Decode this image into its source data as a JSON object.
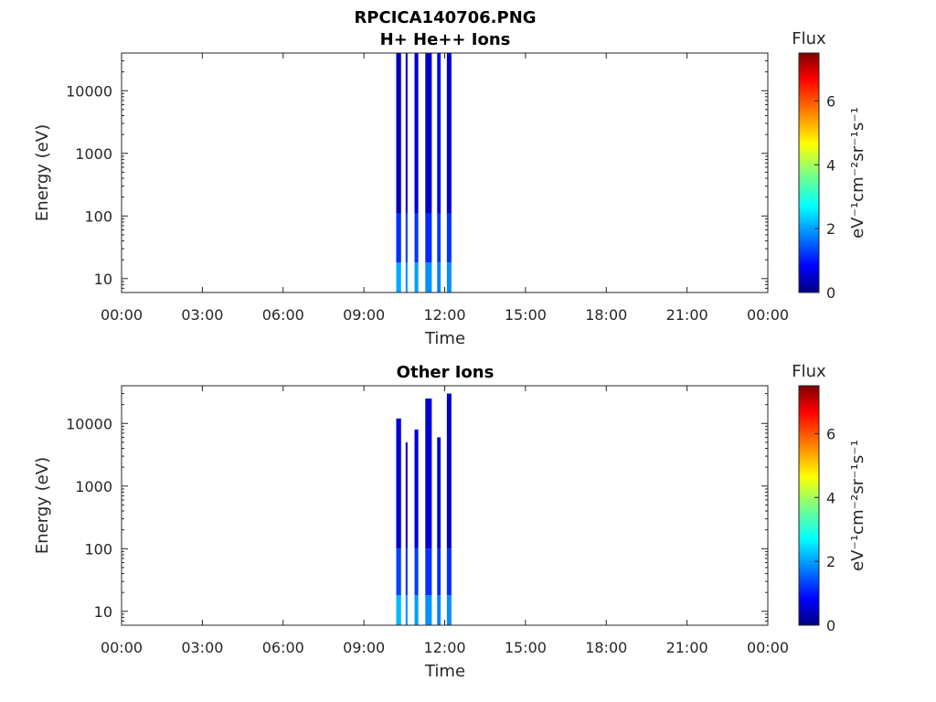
{
  "chart_data": [
    {
      "type": "heatmap",
      "title": "RPCICA140706.PNG",
      "subtitle": "H+ He++ Ions",
      "xlabel": "Time",
      "ylabel": "Energy (eV)",
      "x_ticks": [
        "00:00",
        "03:00",
        "06:00",
        "09:00",
        "12:00",
        "15:00",
        "18:00",
        "21:00",
        "00:00"
      ],
      "x_range_hours": [
        0,
        24
      ],
      "y_scale": "log",
      "y_range": [
        6,
        40000
      ],
      "y_ticks": [
        10,
        100,
        1000,
        10000
      ],
      "colorbar": {
        "title": "Flux",
        "label": "eV⁻¹cm⁻²sr⁻¹s⁻¹",
        "range": [
          0,
          7.5
        ],
        "ticks": [
          0,
          2,
          4,
          6
        ],
        "colormap": "jet"
      },
      "stripes": [
        {
          "t0": 10.2,
          "t1": 10.38,
          "e_split": 110,
          "low_flux": 2.2,
          "high_flux": 0.4
        },
        {
          "t0": 10.55,
          "t1": 10.62,
          "e_split": 110,
          "low_flux": 2.0,
          "high_flux": 0.7
        },
        {
          "t0": 10.88,
          "t1": 11.02,
          "e_split": 110,
          "low_flux": 2.1,
          "high_flux": 0.6
        },
        {
          "t0": 11.28,
          "t1": 11.52,
          "e_split": 110,
          "low_flux": 2.0,
          "high_flux": 0.5
        },
        {
          "t0": 11.72,
          "t1": 11.85,
          "e_split": 110,
          "low_flux": 1.9,
          "high_flux": 0.8
        },
        {
          "t0": 12.08,
          "t1": 12.25,
          "e_split": 110,
          "low_flux": 2.0,
          "high_flux": 0.6
        }
      ]
    },
    {
      "type": "heatmap",
      "title": "Other Ions",
      "xlabel": "Time",
      "ylabel": "Energy (eV)",
      "x_ticks": [
        "00:00",
        "03:00",
        "06:00",
        "09:00",
        "12:00",
        "15:00",
        "18:00",
        "21:00",
        "00:00"
      ],
      "x_range_hours": [
        0,
        24
      ],
      "y_scale": "log",
      "y_range": [
        6,
        40000
      ],
      "y_ticks": [
        10,
        100,
        1000,
        10000
      ],
      "colorbar": {
        "title": "Flux",
        "label": "eV⁻¹cm⁻²sr⁻¹s⁻¹",
        "range": [
          0,
          7.5
        ],
        "ticks": [
          0,
          2,
          4,
          6
        ],
        "colormap": "jet"
      },
      "stripes": [
        {
          "t0": 10.2,
          "t1": 10.38,
          "e_split": 100,
          "low_flux": 2.3,
          "high_flux": 0.6,
          "e_top": 12000
        },
        {
          "t0": 10.55,
          "t1": 10.62,
          "e_split": 100,
          "low_flux": 2.0,
          "high_flux": 0.5,
          "e_top": 5000
        },
        {
          "t0": 10.88,
          "t1": 11.02,
          "e_split": 100,
          "low_flux": 2.1,
          "high_flux": 0.7,
          "e_top": 8000
        },
        {
          "t0": 11.28,
          "t1": 11.52,
          "e_split": 100,
          "low_flux": 2.0,
          "high_flux": 0.6,
          "e_top": 25000
        },
        {
          "t0": 11.72,
          "t1": 11.85,
          "e_split": 100,
          "low_flux": 1.9,
          "high_flux": 0.6,
          "e_top": 6000
        },
        {
          "t0": 12.08,
          "t1": 12.25,
          "e_split": 100,
          "low_flux": 2.0,
          "high_flux": 0.5,
          "e_top": 30000
        }
      ]
    }
  ]
}
